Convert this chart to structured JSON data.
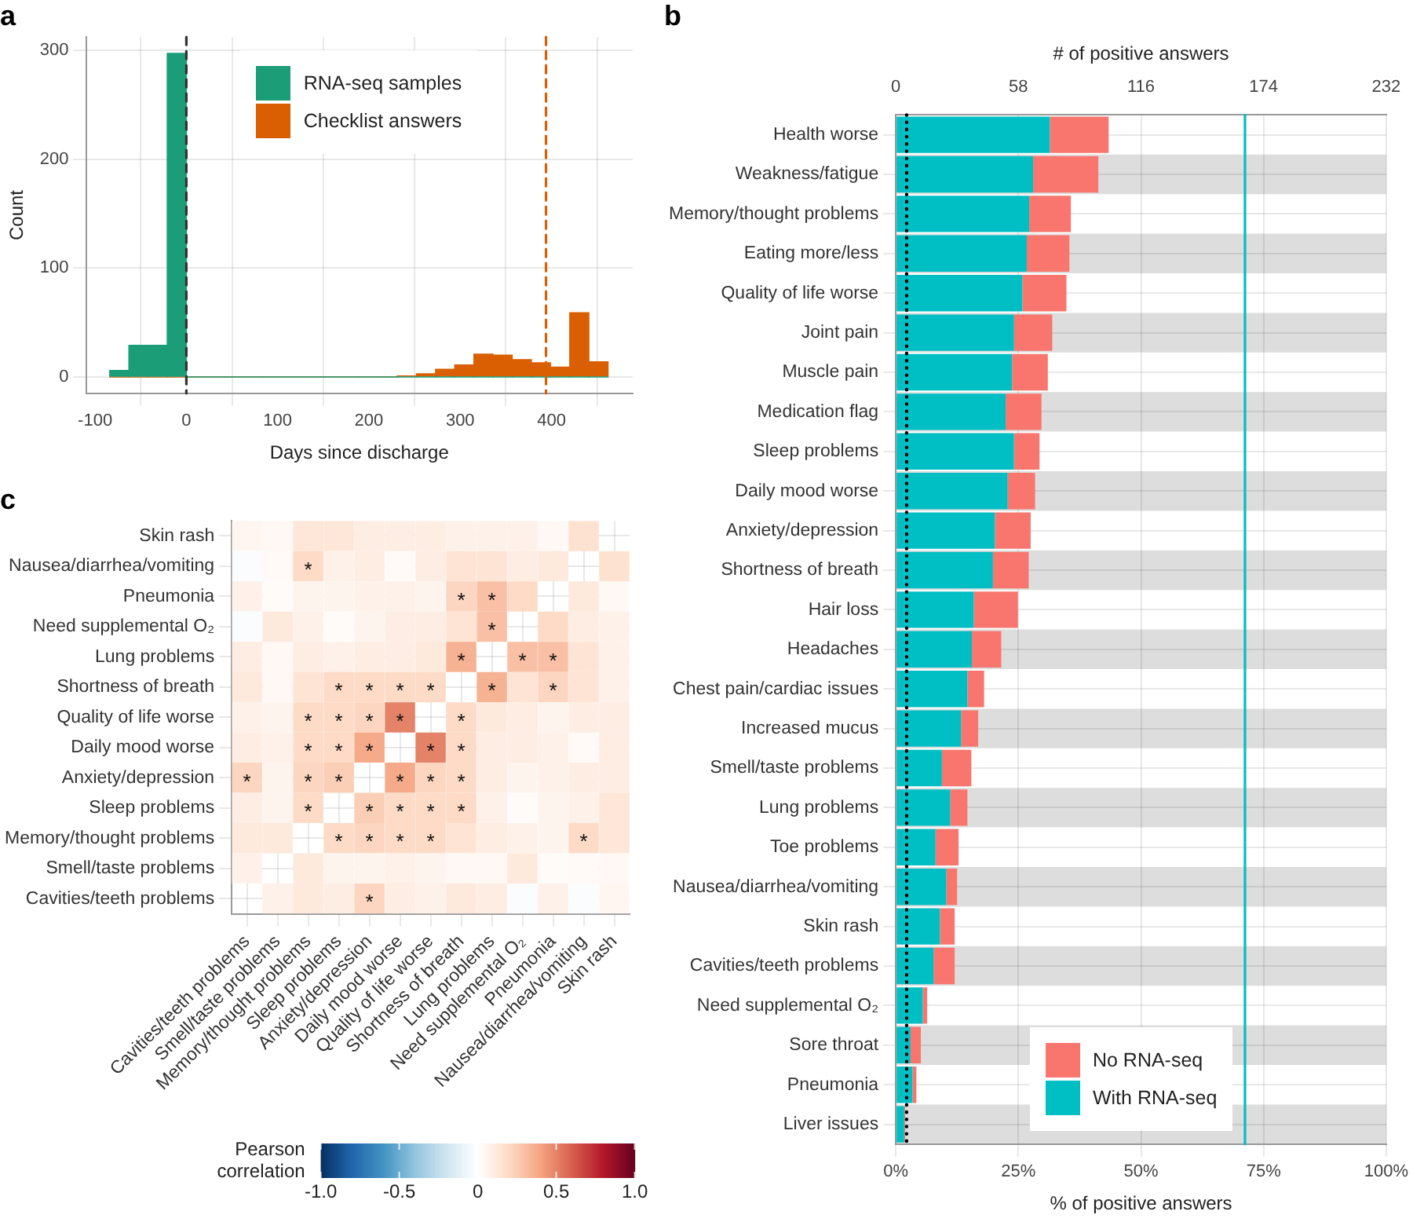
{
  "chart_data": [
    {
      "type": "histogram",
      "title": "a",
      "xlabel": "Days since discharge",
      "ylabel": "Count",
      "xlim": [
        -110,
        489
      ],
      "xticks": [
        -100,
        0,
        100,
        200,
        300,
        400
      ],
      "ylim": [
        -15,
        312
      ],
      "yticks": [
        0,
        100,
        200,
        300
      ],
      "grid": true,
      "legend": "top",
      "series": [
        {
          "name": "RNA-seq samples",
          "color": "#1b9e77",
          "values": [
            6,
            29,
            29,
            297,
            0,
            0,
            0,
            0,
            0,
            0,
            0,
            0,
            0,
            0,
            0,
            0,
            0,
            0,
            0,
            0,
            0,
            0,
            0,
            0,
            0,
            0
          ]
        },
        {
          "name": "Checklist answers",
          "color": "#d95f02",
          "values": [
            0,
            0,
            0,
            0,
            0,
            0,
            0,
            0,
            0,
            0,
            0,
            0,
            0,
            0,
            0,
            1,
            3,
            7,
            11,
            21,
            20,
            16,
            13,
            9,
            59,
            14
          ]
        }
      ],
      "bins": [
        -84,
        -63,
        -42,
        -21,
        0,
        21,
        42,
        63,
        84,
        105,
        126,
        147,
        168,
        189,
        210,
        231,
        252,
        273,
        294,
        315,
        336,
        357,
        378,
        399,
        420,
        441,
        462
      ],
      "ref_lines": [
        {
          "axis": "x",
          "value": 0,
          "color": "#333333",
          "line_style": "dashed"
        },
        {
          "axis": "x",
          "value": 394,
          "color": "#d95f02",
          "line_style": "dashed"
        }
      ]
    },
    {
      "type": "bar",
      "title": "b",
      "orientation": "horizontal",
      "stacked": true,
      "xlabel": "% of positive answers",
      "x2label": "# of positive answers",
      "grid": true,
      "legend": "bottom right",
      "categories": [
        "Health worse",
        "Weakness/fatigue",
        "Memory/thought problems",
        "Eating more/less",
        "Quality of life worse",
        "Joint pain",
        "Muscle pain",
        "Medication flag",
        "Sleep problems",
        "Daily mood worse",
        "Anxiety/depression",
        "Shortness of breath",
        "Hair loss",
        "Headaches",
        "Chest pain/cardiac issues",
        "Increased mucus",
        "Smell/taste problems",
        "Lung problems",
        "Toe problems",
        "Nausea/diarrhea/vomiting",
        "Skin rash",
        "Cavities/teeth problems",
        "Need supplemental O₂",
        "Sore throat",
        "Pneumonia",
        "Liver issues"
      ],
      "xlim": [
        0,
        100
      ],
      "xticks": [
        {
          "value": 0,
          "label": "0%"
        },
        {
          "value": 25,
          "label": "25%"
        },
        {
          "value": 50,
          "label": "50%"
        },
        {
          "value": 75,
          "label": "75%"
        },
        {
          "value": 100,
          "label": "100%"
        }
      ],
      "x2lim": [
        0,
        232
      ],
      "x2ticks": [
        0,
        58,
        116,
        174,
        232
      ],
      "series": [
        {
          "name": "With RNA-seq",
          "color": "#00bfc4",
          "values": [
            31.4,
            28.0,
            27.2,
            26.7,
            25.8,
            24.1,
            23.7,
            22.4,
            24.1,
            22.8,
            20.2,
            19.8,
            15.9,
            15.5,
            14.6,
            13.3,
            9.4,
            11.1,
            8.1,
            10.3,
            9.0,
            7.7,
            5.5,
            3.0,
            3.4,
            1.7
          ]
        },
        {
          "name": "No RNA-seq",
          "color": "#f8766d",
          "values": [
            12.0,
            13.3,
            8.5,
            8.7,
            9.0,
            7.8,
            7.3,
            7.3,
            5.2,
            5.6,
            7.3,
            7.3,
            9.0,
            6.0,
            3.4,
            3.5,
            6.0,
            3.5,
            4.7,
            2.2,
            3.0,
            4.3,
            0.9,
            2.1,
            0.8,
            0.2
          ]
        }
      ],
      "ref_lines": [
        {
          "axis": "x",
          "value": 71.2,
          "color": "#00bfc4",
          "line_style": "solid"
        },
        {
          "axis": "x",
          "value": 2.2,
          "color": "#000000",
          "line_style": "dotted"
        }
      ],
      "bands": [
        {
          "axis": "y",
          "from": "Weakness/fatigue",
          "to": "Weakness/fatigue",
          "color": "#dddddd"
        },
        {
          "axis": "y",
          "from": "Eating more/less",
          "to": "Eating more/less",
          "color": "#dddddd"
        },
        {
          "axis": "y",
          "from": "Joint pain",
          "to": "Joint pain",
          "color": "#dddddd"
        },
        {
          "axis": "y",
          "from": "Medication flag",
          "to": "Medication flag",
          "color": "#dddddd"
        },
        {
          "axis": "y",
          "from": "Daily mood worse",
          "to": "Daily mood worse",
          "color": "#dddddd"
        },
        {
          "axis": "y",
          "from": "Shortness of breath",
          "to": "Shortness of breath",
          "color": "#dddddd"
        },
        {
          "axis": "y",
          "from": "Headaches",
          "to": "Headaches",
          "color": "#dddddd"
        },
        {
          "axis": "y",
          "from": "Increased mucus",
          "to": "Increased mucus",
          "color": "#dddddd"
        },
        {
          "axis": "y",
          "from": "Lung problems",
          "to": "Lung problems",
          "color": "#dddddd"
        },
        {
          "axis": "y",
          "from": "Nausea/diarrhea/vomiting",
          "to": "Nausea/diarrhea/vomiting",
          "color": "#dddddd"
        },
        {
          "axis": "y",
          "from": "Cavities/teeth problems",
          "to": "Cavities/teeth problems",
          "color": "#dddddd"
        },
        {
          "axis": "y",
          "from": "Sore throat",
          "to": "Sore throat",
          "color": "#dddddd"
        },
        {
          "axis": "y",
          "from": "Liver issues",
          "to": "Liver issues",
          "color": "#dddddd"
        }
      ]
    },
    {
      "type": "heatmap",
      "title": "c",
      "clabel": "Pearson correlation",
      "grid": true,
      "categories": [
        "Cavities/teeth problems",
        "Smell/taste problems",
        "Memory/thought problems",
        "Sleep problems",
        "Anxiety/depression",
        "Daily mood worse",
        "Quality of life worse",
        "Shortness of breath",
        "Lung problems",
        "Need supplemental O₂",
        "Pneumonia",
        "Nausea/diarrhea/vomiting",
        "Skin rash"
      ],
      "y_categories": [
        "Skin rash",
        "Nausea/diarrhea/vomiting",
        "Pneumonia",
        "Need supplemental O₂",
        "Lung problems",
        "Shortness of breath",
        "Quality of life worse",
        "Daily mood worse",
        "Anxiety/depression",
        "Sleep problems",
        "Memory/thought problems",
        "Smell/taste problems",
        "Cavities/teeth problems"
      ],
      "cells": [
        [
          0.05,
          0.04,
          0.14,
          0.14,
          0.1,
          0.1,
          0.1,
          0.08,
          0.08,
          0.08,
          0.04,
          0.16,
          null
        ],
        [
          -0.02,
          0.03,
          0.2,
          0.08,
          0.1,
          0.03,
          0.1,
          0.15,
          0.15,
          0.1,
          0.12,
          null,
          0.16
        ],
        [
          0.08,
          0.02,
          0.06,
          0.06,
          0.08,
          0.08,
          0.06,
          0.22,
          0.3,
          0.2,
          null,
          0.12,
          0.04
        ],
        [
          -0.02,
          0.12,
          0.08,
          0.02,
          0.06,
          0.1,
          0.1,
          0.15,
          0.3,
          null,
          0.2,
          0.1,
          0.08
        ],
        [
          0.1,
          0.04,
          0.1,
          0.08,
          0.1,
          0.1,
          0.12,
          0.35,
          null,
          0.3,
          0.3,
          0.15,
          0.08
        ],
        [
          0.12,
          0.04,
          0.15,
          0.2,
          0.2,
          0.2,
          0.2,
          null,
          0.35,
          0.15,
          0.22,
          0.15,
          0.08
        ],
        [
          0.08,
          0.06,
          0.2,
          0.2,
          0.22,
          0.5,
          null,
          0.2,
          0.12,
          0.1,
          0.06,
          0.1,
          0.1
        ],
        [
          0.1,
          0.08,
          0.2,
          0.2,
          0.38,
          null,
          0.5,
          0.2,
          0.1,
          0.1,
          0.08,
          0.03,
          0.1
        ],
        [
          0.22,
          0.06,
          0.22,
          0.25,
          null,
          0.38,
          0.22,
          0.2,
          0.1,
          0.06,
          0.08,
          0.1,
          0.1
        ],
        [
          0.1,
          0.06,
          0.2,
          null,
          0.25,
          0.2,
          0.2,
          0.2,
          0.08,
          0.02,
          0.06,
          0.08,
          0.14
        ],
        [
          0.12,
          0.12,
          null,
          0.2,
          0.22,
          0.2,
          0.2,
          0.15,
          0.1,
          0.08,
          0.06,
          0.2,
          0.14
        ],
        [
          0.08,
          null,
          0.12,
          0.06,
          0.06,
          0.08,
          0.06,
          0.04,
          0.04,
          0.12,
          0.02,
          0.03,
          0.04
        ],
        [
          null,
          0.08,
          0.12,
          0.1,
          0.22,
          0.1,
          0.08,
          0.12,
          0.1,
          -0.02,
          0.08,
          -0.02,
          0.05
        ]
      ],
      "cell_labels": [
        [
          null,
          null,
          null,
          null,
          null,
          null,
          null,
          null,
          null,
          null,
          null,
          null,
          null
        ],
        [
          null,
          null,
          "*",
          null,
          null,
          null,
          null,
          null,
          null,
          null,
          null,
          null,
          null
        ],
        [
          null,
          null,
          null,
          null,
          null,
          null,
          null,
          "*",
          "*",
          null,
          null,
          null,
          null
        ],
        [
          null,
          null,
          null,
          null,
          null,
          null,
          null,
          null,
          "*",
          null,
          null,
          null,
          null
        ],
        [
          null,
          null,
          null,
          null,
          null,
          null,
          null,
          "*",
          null,
          "*",
          "*",
          null,
          null
        ],
        [
          null,
          null,
          null,
          "*",
          "*",
          "*",
          "*",
          null,
          "*",
          null,
          "*",
          null,
          null
        ],
        [
          null,
          null,
          "*",
          "*",
          "*",
          "*",
          null,
          "*",
          null,
          null,
          null,
          null,
          null
        ],
        [
          null,
          null,
          "*",
          "*",
          "*",
          null,
          "*",
          "*",
          null,
          null,
          null,
          null,
          null
        ],
        [
          "*",
          null,
          "*",
          "*",
          null,
          "*",
          "*",
          "*",
          null,
          null,
          null,
          null,
          null
        ],
        [
          null,
          null,
          "*",
          null,
          "*",
          "*",
          "*",
          "*",
          null,
          null,
          null,
          null,
          null
        ],
        [
          null,
          null,
          null,
          "*",
          "*",
          "*",
          "*",
          null,
          null,
          null,
          null,
          "*",
          null
        ],
        [
          null,
          null,
          null,
          null,
          null,
          null,
          null,
          null,
          null,
          null,
          null,
          null,
          null
        ],
        [
          null,
          null,
          null,
          null,
          "*",
          null,
          null,
          null,
          null,
          null,
          null,
          null,
          null
        ]
      ],
      "clim": [
        -1,
        1
      ],
      "cticks": [
        {
          "value": -1,
          "label": "-1.0"
        },
        {
          "value": -0.5,
          "label": "-0.5"
        },
        0,
        {
          "value": 0.5,
          "label": "0.5"
        },
        {
          "value": 1,
          "label": "1.0"
        }
      ]
    }
  ]
}
